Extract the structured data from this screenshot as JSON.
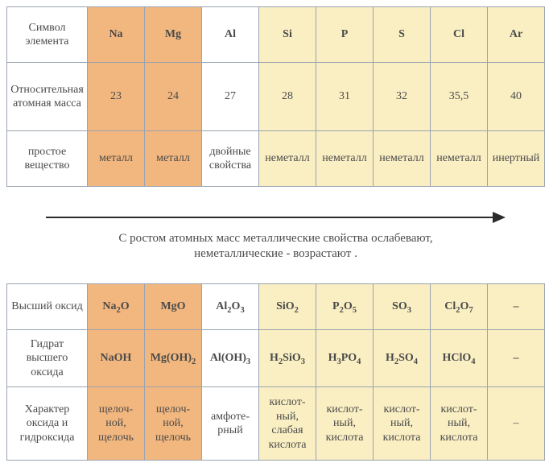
{
  "row_labels": {
    "symbol": "Символ элемента",
    "mass": "Относительная атомная масса",
    "simple": "простое вещество",
    "oxide": "Высший оксид",
    "hydrate": "Гидрат высшего оксида",
    "character": "Характер оксида и гидроксида"
  },
  "arrow_text_l1": "С ростом атомных масс металлические свойства ослабевают,",
  "arrow_text_l2": "неметаллические  - возрастают .",
  "columns": [
    {
      "sym": "Na",
      "mass": "23",
      "simple": "металл",
      "oxide_html": "Na<sub>2</sub>O",
      "hydrate_html": "NaOH",
      "char": "щелоч­ной, щелочь",
      "cls": "metal"
    },
    {
      "sym": "Mg",
      "mass": "24",
      "simple": "металл",
      "oxide_html": "MgO",
      "hydrate_html": "Mg(OH)<sub>2</sub>",
      "char": "щелоч­ной, щелочь",
      "cls": "metal"
    },
    {
      "sym": "Al",
      "mass": "27",
      "simple": "двойные свойства",
      "oxide_html": "Al<sub>2</sub>O<sub>3</sub>",
      "hydrate_html": "Al(OH)<sub>3</sub>",
      "char": "амфоте­рный",
      "cls": "amph"
    },
    {
      "sym": "Si",
      "mass": "28",
      "simple": "неметалл",
      "oxide_html": "SiO<sub>2</sub>",
      "hydrate_html": "H<sub>2</sub>SiO<sub>3</sub>",
      "char": "кислот­ный, слабая кислота",
      "cls": "nonmetal"
    },
    {
      "sym": "P",
      "mass": "31",
      "simple": "неметалл",
      "oxide_html": "P<sub>2</sub>O<sub>5</sub>",
      "hydrate_html": "H<sub>3</sub>PO<sub>4</sub>",
      "char": "кислот­ный, кислота",
      "cls": "nonmetal"
    },
    {
      "sym": "S",
      "mass": "32",
      "simple": "неметалл",
      "oxide_html": "SO<sub>3</sub>",
      "hydrate_html": "H<sub>2</sub>SO<sub>4</sub>",
      "char": "кислот­ный, кислота",
      "cls": "nonmetal"
    },
    {
      "sym": "Cl",
      "mass": "35,5",
      "simple": "не­металл",
      "oxide_html": "Cl<sub>2</sub>O<sub>7</sub>",
      "hydrate_html": "HClO<sub>4</sub>",
      "char": "кислот­ный, кислота",
      "cls": "nonmetal"
    },
    {
      "sym": "Ar",
      "mass": "40",
      "simple": "инер­тный",
      "oxide_html": "–",
      "hydrate_html": "–",
      "char": "–",
      "cls": "nonmetal"
    }
  ],
  "col_widths": [
    "100px",
    "71px",
    "71px",
    "71px",
    "71px",
    "71px",
    "71px",
    "71px",
    "71px"
  ],
  "row_heights": {
    "symbol": "56px",
    "mass": "72px",
    "simple": "56px",
    "arrow": "96px",
    "oxide": "44px",
    "hydrate": "58px",
    "character": "78px"
  },
  "colors": {
    "border": "#9aa3b0",
    "metal_bg": "#f2b77f",
    "nonmetal_bg": "#faefc3",
    "text": "#4a4a4a",
    "arrow": "#2b2b2b"
  }
}
